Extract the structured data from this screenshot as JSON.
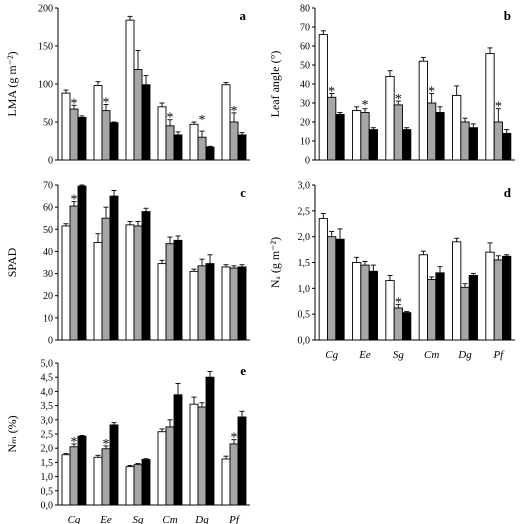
{
  "figure": {
    "series_colors": [
      "#ffffff",
      "#a6a6a6",
      "#000000"
    ],
    "categories": [
      "Cg",
      "Ee",
      "Sg",
      "Cm",
      "Dg",
      "Pf"
    ]
  },
  "chart_data": [
    {
      "type": "bar",
      "panel": "a",
      "ylabel": "LMA (g m⁻²)",
      "ylim": [
        0,
        200
      ],
      "yticks": [
        "0",
        "50",
        "100",
        "150",
        "200"
      ],
      "categories": [
        "Cg",
        "Ee",
        "Sg",
        "Cm",
        "Dg",
        "Pf"
      ],
      "series": [
        {
          "values": [
            88,
            98,
            184,
            70,
            47,
            99
          ],
          "errors": [
            4,
            5,
            5,
            5,
            3,
            3
          ]
        },
        {
          "values": [
            67,
            65,
            119,
            45,
            30,
            50
          ],
          "errors": [
            5,
            8,
            25,
            8,
            8,
            12
          ]
        },
        {
          "values": [
            56,
            49,
            99,
            33,
            17,
            33
          ],
          "errors": [
            2,
            1,
            12,
            4,
            1,
            3
          ]
        }
      ],
      "significant": [
        true,
        true,
        false,
        true,
        true,
        true
      ]
    },
    {
      "type": "bar",
      "panel": "b",
      "ylabel": "Leaf angle (°)",
      "ylim": [
        0,
        80
      ],
      "yticks": [
        "0",
        "10",
        "20",
        "30",
        "40",
        "50",
        "60",
        "70",
        "80"
      ],
      "categories": [
        "Cg",
        "Ee",
        "Sg",
        "Cm",
        "Dg",
        "Pf"
      ],
      "series": [
        {
          "values": [
            66,
            26,
            44,
            52,
            34,
            56
          ],
          "errors": [
            2,
            2,
            3,
            2,
            5,
            3
          ]
        },
        {
          "values": [
            33,
            25,
            29,
            30,
            20,
            20
          ],
          "errors": [
            2,
            2,
            2,
            5,
            2,
            7
          ]
        },
        {
          "values": [
            24,
            16,
            16,
            25,
            17,
            14
          ],
          "errors": [
            1,
            1,
            1,
            3,
            2,
            2
          ]
        }
      ],
      "significant": [
        true,
        true,
        true,
        true,
        false,
        true
      ]
    },
    {
      "type": "bar",
      "panel": "c",
      "ylabel": "SPAD",
      "ylim": [
        0,
        70
      ],
      "yticks": [
        "0",
        "10",
        "20",
        "30",
        "40",
        "50",
        "60",
        "70"
      ],
      "categories": [
        "Cg",
        "Ee",
        "Sg",
        "Cm",
        "Dg",
        "Pf"
      ],
      "series": [
        {
          "values": [
            51.5,
            44,
            52,
            34.5,
            31,
            33
          ],
          "errors": [
            1,
            4,
            1.5,
            1.5,
            1,
            1
          ]
        },
        {
          "values": [
            60.5,
            55,
            51.5,
            43.5,
            33.5,
            32.5
          ],
          "errors": [
            2,
            5,
            2,
            3,
            3,
            1
          ]
        },
        {
          "values": [
            69.5,
            65,
            58,
            45,
            34.5,
            33
          ],
          "errors": [
            0.5,
            2.5,
            1.5,
            2,
            4,
            1
          ]
        }
      ],
      "significant": [
        true,
        false,
        false,
        false,
        false,
        false
      ]
    },
    {
      "type": "bar",
      "panel": "d",
      "ylabel": "Nₐ (g m⁻²)",
      "ylim": [
        0,
        3
      ],
      "yticks": [
        "0,0",
        "0,5",
        "1,0",
        "1,5",
        "2,0",
        "2,5",
        "3,0"
      ],
      "categories": [
        "Cg",
        "Ee",
        "Sg",
        "Cm",
        "Dg",
        "Pf"
      ],
      "series": [
        {
          "values": [
            2.35,
            1.5,
            1.15,
            1.65,
            1.9,
            1.7
          ],
          "errors": [
            0.1,
            0.1,
            0.1,
            0.07,
            0.07,
            0.18
          ]
        },
        {
          "values": [
            2.0,
            1.45,
            0.62,
            1.17,
            1.02,
            1.55
          ],
          "errors": [
            0.1,
            0.07,
            0.07,
            0.05,
            0.07,
            0.08
          ]
        },
        {
          "values": [
            1.95,
            1.33,
            0.53,
            1.3,
            1.25,
            1.62
          ],
          "errors": [
            0.2,
            0.12,
            0.02,
            0.12,
            0.04,
            0.03
          ]
        }
      ],
      "significant": [
        false,
        false,
        true,
        false,
        false,
        false
      ]
    },
    {
      "type": "bar",
      "panel": "e",
      "ylabel": "Nₘ (%)",
      "ylim": [
        0,
        5
      ],
      "yticks": [
        "0,0",
        "0,5",
        "1,0",
        "1,5",
        "2,0",
        "2,5",
        "3,0",
        "3,5",
        "4,0",
        "4,5",
        "5,0"
      ],
      "categories": [
        "Cg",
        "Ee",
        "Sg",
        "Cm",
        "Dg",
        "Pf"
      ],
      "series": [
        {
          "values": [
            1.77,
            1.68,
            1.35,
            2.58,
            3.55,
            1.62
          ],
          "errors": [
            0.04,
            0.07,
            0.04,
            0.1,
            0.25,
            0.1
          ]
        },
        {
          "values": [
            2.05,
            1.98,
            1.42,
            2.75,
            3.45,
            2.15
          ],
          "errors": [
            0.1,
            0.1,
            0.04,
            0.25,
            0.15,
            0.15
          ]
        },
        {
          "values": [
            2.42,
            2.82,
            1.6,
            3.88,
            4.5,
            3.1
          ],
          "errors": [
            0.03,
            0.08,
            0.03,
            0.4,
            0.2,
            0.2
          ]
        }
      ],
      "significant": [
        true,
        true,
        false,
        false,
        false,
        true
      ]
    }
  ]
}
